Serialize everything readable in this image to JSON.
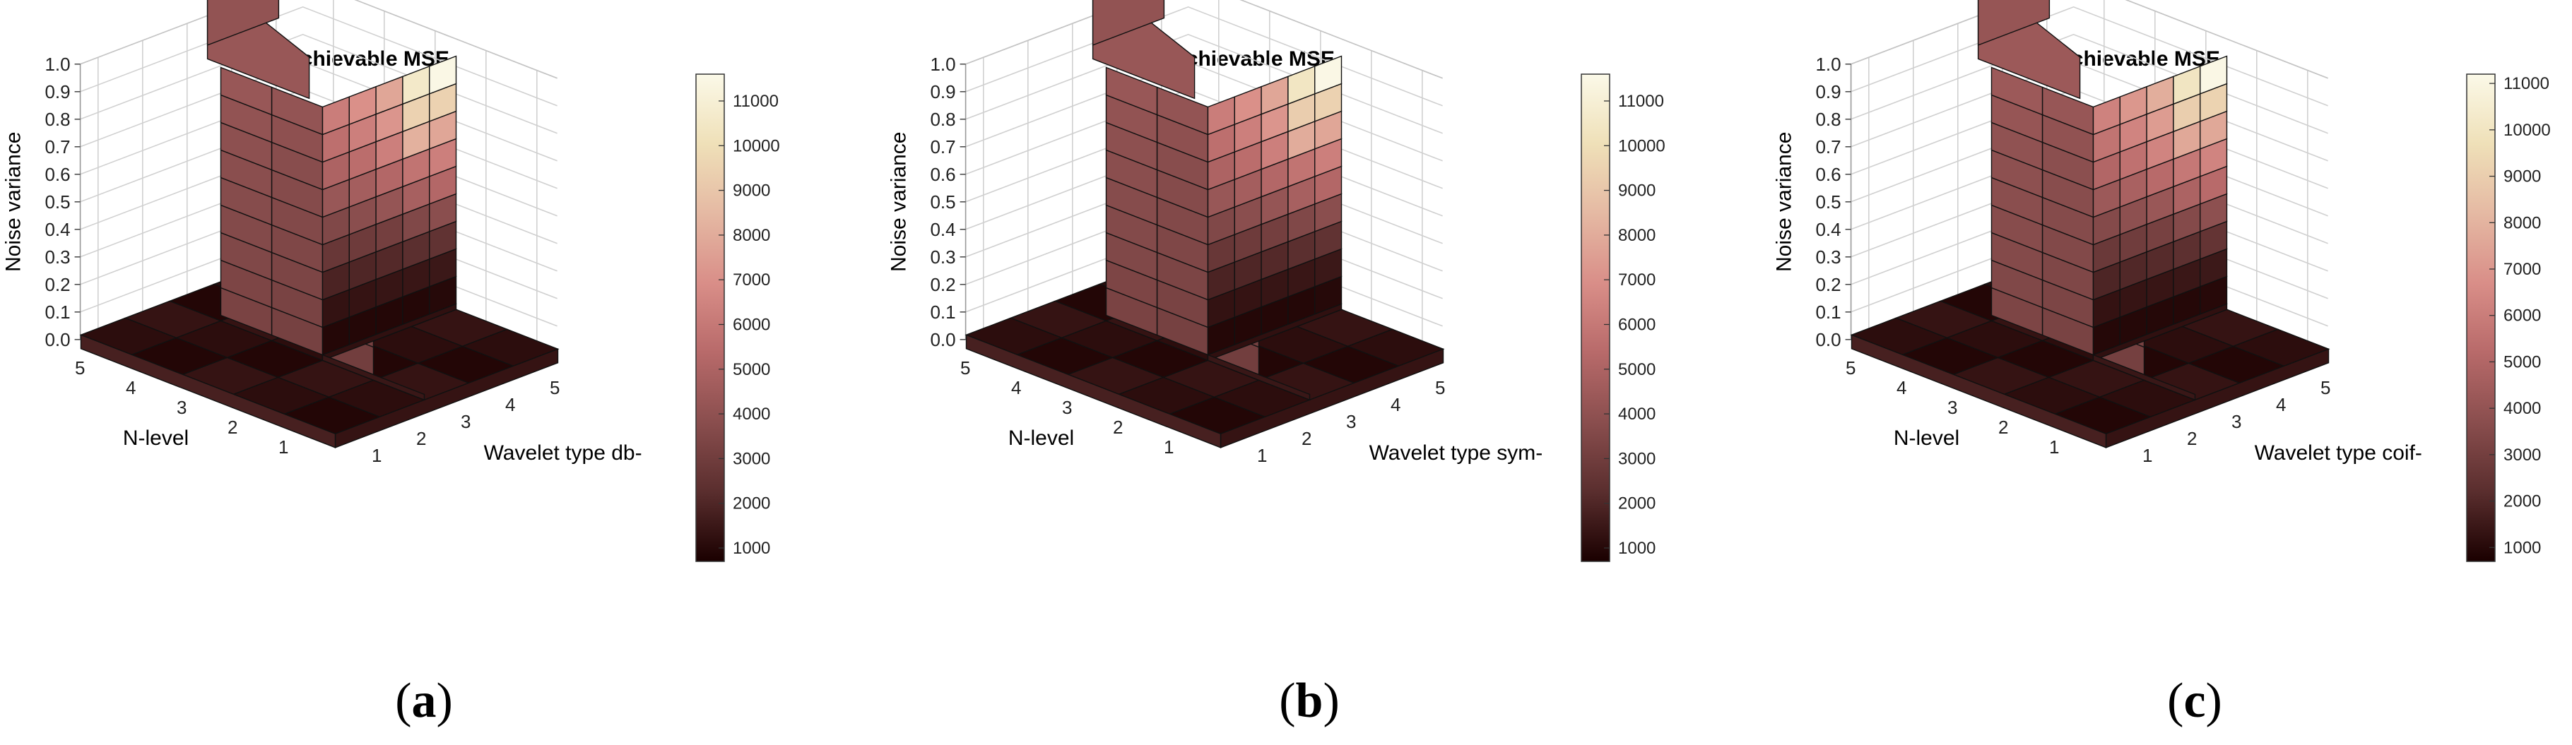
{
  "chart_data": [
    {
      "type": "surface3d",
      "panel_label": "(a)",
      "panel_letter": "a",
      "title": "Achievable MSE",
      "xlabel": "Wavelet type db-",
      "ylabel": "N-level",
      "zlabel": "Noise variance",
      "x_ticks": [
        "1",
        "2",
        "3",
        "4",
        "5"
      ],
      "y_ticks": [
        "1",
        "2",
        "3",
        "4",
        "5"
      ],
      "z_ticks": [
        "0.0",
        "0.1",
        "0.2",
        "0.3",
        "0.4",
        "0.5",
        "0.6",
        "0.7",
        "0.8",
        "0.9",
        "1.0"
      ],
      "zlim": [
        0,
        1.0
      ],
      "colorbar": {
        "ticks": [
          "1000",
          "2000",
          "3000",
          "4000",
          "5000",
          "6000",
          "7000",
          "8000",
          "9000",
          "10000",
          "11000"
        ],
        "range": [
          700,
          11600
        ]
      },
      "front_wall_values": [
        [
          950,
          1300,
          1900,
          2700,
          3500,
          4300,
          5000,
          5600,
          6200
        ],
        [
          950,
          1350,
          2000,
          2900,
          3800,
          4700,
          5500,
          6300,
          7000
        ],
        [
          950,
          1400,
          2100,
          3100,
          4200,
          5200,
          6300,
          7200,
          7800
        ],
        [
          950,
          1450,
          2300,
          3500,
          4800,
          5800,
          8200,
          9500,
          10600
        ],
        [
          1000,
          1500,
          2500,
          3800,
          5200,
          6300,
          7800,
          9500,
          11500
        ]
      ],
      "left_wall_values": [
        3300,
        3400,
        3500,
        3600,
        3700,
        3800,
        3900,
        4100,
        4300
      ]
    },
    {
      "type": "surface3d",
      "panel_label": "(b)",
      "panel_letter": "b",
      "title": "Achievable MSE",
      "xlabel": "Wavelet type sym-",
      "ylabel": "N-level",
      "zlabel": "Noise variance",
      "x_ticks": [
        "1",
        "2",
        "3",
        "4",
        "5"
      ],
      "y_ticks": [
        "1",
        "2",
        "3",
        "4",
        "5"
      ],
      "z_ticks": [
        "0.0",
        "0.1",
        "0.2",
        "0.3",
        "0.4",
        "0.5",
        "0.6",
        "0.7",
        "0.8",
        "0.9",
        "1.0"
      ],
      "zlim": [
        0,
        1.0
      ],
      "colorbar": {
        "ticks": [
          "1000",
          "2000",
          "3000",
          "4000",
          "5000",
          "6000",
          "7000",
          "8000",
          "9000",
          "10000",
          "11000"
        ],
        "range": [
          700,
          11600
        ]
      },
      "front_wall_values": [
        [
          950,
          1300,
          1900,
          2700,
          3500,
          4300,
          5000,
          5600,
          6200
        ],
        [
          950,
          1350,
          2000,
          2900,
          3800,
          4700,
          5500,
          6300,
          7000
        ],
        [
          950,
          1400,
          2100,
          3100,
          4200,
          5200,
          6300,
          7200,
          7800
        ],
        [
          950,
          1450,
          2300,
          3500,
          4800,
          5800,
          8000,
          9300,
          10400
        ],
        [
          1000,
          1500,
          2500,
          3800,
          5200,
          6300,
          7800,
          9500,
          11500
        ]
      ],
      "left_wall_values": [
        3300,
        3400,
        3500,
        3600,
        3700,
        3800,
        3900,
        4100,
        4300
      ]
    },
    {
      "type": "surface3d",
      "panel_label": "(c)",
      "panel_letter": "c",
      "title": "Achievable MSE",
      "xlabel": "Wavelet type coif-",
      "ylabel": "N-level",
      "zlabel": "Noise variance",
      "x_ticks": [
        "1",
        "2",
        "3",
        "4",
        "5"
      ],
      "y_ticks": [
        "1",
        "2",
        "3",
        "4",
        "5"
      ],
      "z_ticks": [
        "0.0",
        "0.1",
        "0.2",
        "0.3",
        "0.4",
        "0.5",
        "0.6",
        "0.7",
        "0.8",
        "0.9",
        "1.0"
      ],
      "zlim": [
        0,
        1.0
      ],
      "colorbar": {
        "ticks": [
          "1000",
          "2000",
          "3000",
          "4000",
          "5000",
          "6000",
          "7000",
          "8000",
          "9000",
          "10000",
          "11000"
        ],
        "range": [
          700,
          11200
        ]
      },
      "front_wall_values": [
        [
          950,
          1300,
          1900,
          2700,
          3500,
          4300,
          5000,
          5600,
          6200
        ],
        [
          950,
          1350,
          2000,
          2900,
          3800,
          4700,
          5500,
          6300,
          7000
        ],
        [
          950,
          1400,
          2100,
          3100,
          4200,
          5200,
          6300,
          7200,
          7800
        ],
        [
          950,
          1450,
          2300,
          3500,
          4800,
          5800,
          7600,
          9000,
          10000
        ],
        [
          1000,
          1500,
          2500,
          3800,
          5200,
          6300,
          7600,
          9200,
          11100
        ]
      ],
      "left_wall_values": [
        3300,
        3400,
        3500,
        3600,
        3700,
        3800,
        3900,
        4100,
        4300
      ]
    }
  ],
  "colors": {
    "colormap": [
      "#1a0000",
      "#5a2e2e",
      "#8a4e4e",
      "#b86a6a",
      "#d98e88",
      "#e5b9a3",
      "#efe0b8",
      "#fbf9e8"
    ],
    "floor": "#2a0a0a",
    "gridline": "#d0d0d0",
    "edge": "#111111"
  }
}
